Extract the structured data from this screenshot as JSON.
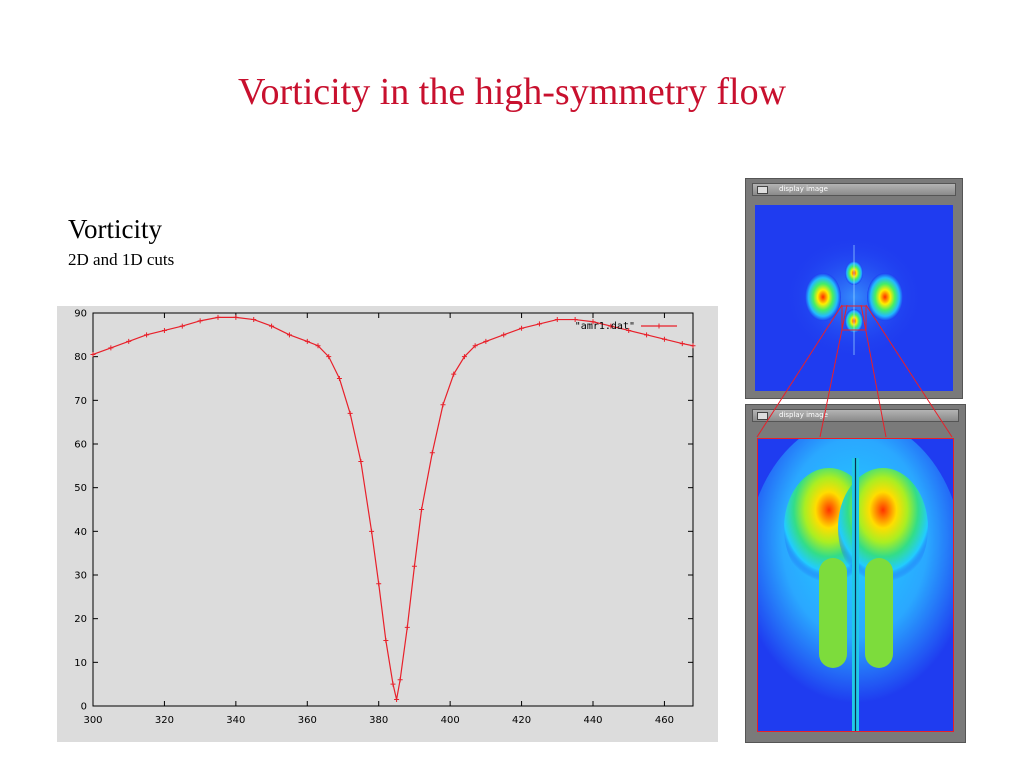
{
  "slide": {
    "title": "Vorticity in the high-symmetry flow",
    "section_title": "Vorticity",
    "section_subtitle": "2D and 1D cuts"
  },
  "windows": {
    "top": {
      "title": "display image"
    },
    "bottom": {
      "title": "display image"
    }
  },
  "colors": {
    "title": "#c8102e",
    "series": "#e8202a",
    "plot_bg": "#dcdcdc",
    "field_bg": "#1f3cf0"
  },
  "chart_data": {
    "type": "line",
    "title": "",
    "xlabel": "",
    "ylabel": "",
    "xlim": [
      300,
      468
    ],
    "ylim": [
      0,
      90
    ],
    "xticks": [
      300,
      320,
      340,
      360,
      380,
      400,
      420,
      440,
      460
    ],
    "yticks": [
      0,
      10,
      20,
      30,
      40,
      50,
      60,
      70,
      80,
      90
    ],
    "grid": false,
    "legend_position": "top-right",
    "series": [
      {
        "name": "\"amr1.dat\"",
        "x": [
          300,
          305,
          310,
          315,
          320,
          325,
          330,
          335,
          340,
          345,
          350,
          355,
          360,
          363,
          366,
          369,
          372,
          375,
          378,
          380,
          382,
          384,
          385,
          386,
          388,
          390,
          392,
          395,
          398,
          401,
          404,
          407,
          410,
          415,
          420,
          425,
          430,
          435,
          440,
          445,
          450,
          455,
          460,
          465,
          468
        ],
        "y": [
          80.5,
          82,
          83.5,
          85,
          86,
          87,
          88.2,
          89,
          89,
          88.5,
          87,
          85,
          83.5,
          82.5,
          80,
          75,
          67,
          56,
          40,
          28,
          15,
          5,
          1.5,
          6,
          18,
          32,
          45,
          58,
          69,
          76,
          80,
          82.5,
          83.5,
          85,
          86.5,
          87.5,
          88.5,
          88.5,
          88,
          87,
          86,
          85,
          84,
          83,
          82.5
        ]
      }
    ]
  }
}
